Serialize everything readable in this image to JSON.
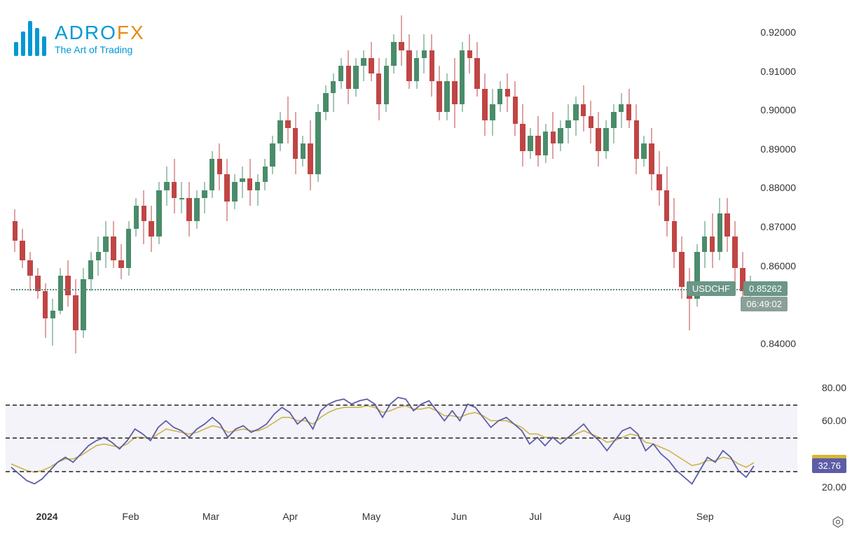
{
  "logo": {
    "title_a": "ADRO",
    "title_b": "FX",
    "subtitle": "The Art of Trading"
  },
  "main_chart": {
    "type": "candlestick",
    "symbol": "USDCHF",
    "current_price": "0.85262",
    "countdown": "06:49:02",
    "price_line_y": 0.85262,
    "y_axis": {
      "min": 0.834,
      "max": 0.924,
      "ticks": [
        0.84,
        0.86,
        0.87,
        0.88,
        0.89,
        0.9,
        0.91,
        0.92
      ],
      "tick_labels": [
        "0.84000",
        "0.86000",
        "0.87000",
        "0.88000",
        "0.89000",
        "0.90000",
        "0.91000",
        "0.92000"
      ]
    },
    "candles": [
      {
        "o": 0.87,
        "h": 0.873,
        "l": 0.862,
        "c": 0.865,
        "g": false
      },
      {
        "o": 0.865,
        "h": 0.868,
        "l": 0.858,
        "c": 0.86,
        "g": false
      },
      {
        "o": 0.86,
        "h": 0.862,
        "l": 0.852,
        "c": 0.856,
        "g": false
      },
      {
        "o": 0.856,
        "h": 0.858,
        "l": 0.85,
        "c": 0.852,
        "g": false
      },
      {
        "o": 0.852,
        "h": 0.854,
        "l": 0.84,
        "c": 0.845,
        "g": false
      },
      {
        "o": 0.845,
        "h": 0.85,
        "l": 0.838,
        "c": 0.847,
        "g": true
      },
      {
        "o": 0.847,
        "h": 0.858,
        "l": 0.846,
        "c": 0.856,
        "g": true
      },
      {
        "o": 0.856,
        "h": 0.86,
        "l": 0.848,
        "c": 0.851,
        "g": false
      },
      {
        "o": 0.851,
        "h": 0.855,
        "l": 0.836,
        "c": 0.842,
        "g": false
      },
      {
        "o": 0.842,
        "h": 0.858,
        "l": 0.84,
        "c": 0.855,
        "g": true
      },
      {
        "o": 0.855,
        "h": 0.862,
        "l": 0.852,
        "c": 0.86,
        "g": true
      },
      {
        "o": 0.86,
        "h": 0.866,
        "l": 0.856,
        "c": 0.862,
        "g": true
      },
      {
        "o": 0.862,
        "h": 0.87,
        "l": 0.858,
        "c": 0.866,
        "g": true
      },
      {
        "o": 0.866,
        "h": 0.87,
        "l": 0.858,
        "c": 0.86,
        "g": false
      },
      {
        "o": 0.86,
        "h": 0.864,
        "l": 0.855,
        "c": 0.858,
        "g": false
      },
      {
        "o": 0.858,
        "h": 0.87,
        "l": 0.856,
        "c": 0.868,
        "g": true
      },
      {
        "o": 0.868,
        "h": 0.876,
        "l": 0.866,
        "c": 0.874,
        "g": true
      },
      {
        "o": 0.874,
        "h": 0.878,
        "l": 0.864,
        "c": 0.87,
        "g": false
      },
      {
        "o": 0.87,
        "h": 0.874,
        "l": 0.862,
        "c": 0.866,
        "g": false
      },
      {
        "o": 0.866,
        "h": 0.88,
        "l": 0.864,
        "c": 0.878,
        "g": true
      },
      {
        "o": 0.878,
        "h": 0.884,
        "l": 0.874,
        "c": 0.88,
        "g": true
      },
      {
        "o": 0.88,
        "h": 0.886,
        "l": 0.872,
        "c": 0.876,
        "g": false
      },
      {
        "o": 0.876,
        "h": 0.88,
        "l": 0.872,
        "c": 0.876,
        "g": true
      },
      {
        "o": 0.876,
        "h": 0.88,
        "l": 0.866,
        "c": 0.87,
        "g": false
      },
      {
        "o": 0.87,
        "h": 0.878,
        "l": 0.868,
        "c": 0.876,
        "g": true
      },
      {
        "o": 0.876,
        "h": 0.88,
        "l": 0.872,
        "c": 0.878,
        "g": true
      },
      {
        "o": 0.878,
        "h": 0.888,
        "l": 0.876,
        "c": 0.886,
        "g": true
      },
      {
        "o": 0.886,
        "h": 0.89,
        "l": 0.878,
        "c": 0.882,
        "g": false
      },
      {
        "o": 0.882,
        "h": 0.886,
        "l": 0.87,
        "c": 0.875,
        "g": false
      },
      {
        "o": 0.875,
        "h": 0.882,
        "l": 0.873,
        "c": 0.88,
        "g": true
      },
      {
        "o": 0.88,
        "h": 0.884,
        "l": 0.876,
        "c": 0.881,
        "g": true
      },
      {
        "o": 0.881,
        "h": 0.886,
        "l": 0.874,
        "c": 0.878,
        "g": false
      },
      {
        "o": 0.878,
        "h": 0.882,
        "l": 0.874,
        "c": 0.88,
        "g": true
      },
      {
        "o": 0.88,
        "h": 0.886,
        "l": 0.878,
        "c": 0.884,
        "g": true
      },
      {
        "o": 0.884,
        "h": 0.892,
        "l": 0.882,
        "c": 0.89,
        "g": true
      },
      {
        "o": 0.89,
        "h": 0.898,
        "l": 0.888,
        "c": 0.896,
        "g": true
      },
      {
        "o": 0.896,
        "h": 0.902,
        "l": 0.89,
        "c": 0.894,
        "g": false
      },
      {
        "o": 0.894,
        "h": 0.898,
        "l": 0.882,
        "c": 0.886,
        "g": false
      },
      {
        "o": 0.886,
        "h": 0.892,
        "l": 0.884,
        "c": 0.89,
        "g": true
      },
      {
        "o": 0.89,
        "h": 0.896,
        "l": 0.878,
        "c": 0.882,
        "g": false
      },
      {
        "o": 0.882,
        "h": 0.9,
        "l": 0.88,
        "c": 0.898,
        "g": true
      },
      {
        "o": 0.898,
        "h": 0.905,
        "l": 0.896,
        "c": 0.903,
        "g": true
      },
      {
        "o": 0.903,
        "h": 0.908,
        "l": 0.898,
        "c": 0.906,
        "g": true
      },
      {
        "o": 0.906,
        "h": 0.912,
        "l": 0.904,
        "c": 0.91,
        "g": true
      },
      {
        "o": 0.91,
        "h": 0.914,
        "l": 0.9,
        "c": 0.904,
        "g": false
      },
      {
        "o": 0.904,
        "h": 0.912,
        "l": 0.902,
        "c": 0.91,
        "g": true
      },
      {
        "o": 0.91,
        "h": 0.914,
        "l": 0.906,
        "c": 0.912,
        "g": true
      },
      {
        "o": 0.912,
        "h": 0.916,
        "l": 0.906,
        "c": 0.908,
        "g": false
      },
      {
        "o": 0.908,
        "h": 0.912,
        "l": 0.896,
        "c": 0.9,
        "g": false
      },
      {
        "o": 0.9,
        "h": 0.912,
        "l": 0.898,
        "c": 0.91,
        "g": true
      },
      {
        "o": 0.91,
        "h": 0.918,
        "l": 0.908,
        "c": 0.916,
        "g": true
      },
      {
        "o": 0.916,
        "h": 0.923,
        "l": 0.91,
        "c": 0.914,
        "g": false
      },
      {
        "o": 0.914,
        "h": 0.918,
        "l": 0.904,
        "c": 0.906,
        "g": false
      },
      {
        "o": 0.906,
        "h": 0.914,
        "l": 0.904,
        "c": 0.912,
        "g": true
      },
      {
        "o": 0.912,
        "h": 0.918,
        "l": 0.908,
        "c": 0.914,
        "g": true
      },
      {
        "o": 0.914,
        "h": 0.918,
        "l": 0.902,
        "c": 0.906,
        "g": false
      },
      {
        "o": 0.906,
        "h": 0.91,
        "l": 0.896,
        "c": 0.898,
        "g": false
      },
      {
        "o": 0.898,
        "h": 0.908,
        "l": 0.896,
        "c": 0.906,
        "g": true
      },
      {
        "o": 0.906,
        "h": 0.912,
        "l": 0.894,
        "c": 0.9,
        "g": false
      },
      {
        "o": 0.9,
        "h": 0.916,
        "l": 0.898,
        "c": 0.914,
        "g": true
      },
      {
        "o": 0.914,
        "h": 0.918,
        "l": 0.908,
        "c": 0.912,
        "g": false
      },
      {
        "o": 0.912,
        "h": 0.916,
        "l": 0.902,
        "c": 0.904,
        "g": false
      },
      {
        "o": 0.904,
        "h": 0.908,
        "l": 0.892,
        "c": 0.896,
        "g": false
      },
      {
        "o": 0.896,
        "h": 0.904,
        "l": 0.892,
        "c": 0.9,
        "g": true
      },
      {
        "o": 0.9,
        "h": 0.906,
        "l": 0.898,
        "c": 0.904,
        "g": true
      },
      {
        "o": 0.904,
        "h": 0.908,
        "l": 0.898,
        "c": 0.902,
        "g": false
      },
      {
        "o": 0.902,
        "h": 0.906,
        "l": 0.892,
        "c": 0.895,
        "g": false
      },
      {
        "o": 0.895,
        "h": 0.9,
        "l": 0.884,
        "c": 0.888,
        "g": false
      },
      {
        "o": 0.888,
        "h": 0.894,
        "l": 0.886,
        "c": 0.892,
        "g": true
      },
      {
        "o": 0.892,
        "h": 0.897,
        "l": 0.884,
        "c": 0.887,
        "g": false
      },
      {
        "o": 0.887,
        "h": 0.895,
        "l": 0.885,
        "c": 0.893,
        "g": true
      },
      {
        "o": 0.893,
        "h": 0.898,
        "l": 0.886,
        "c": 0.89,
        "g": false
      },
      {
        "o": 0.89,
        "h": 0.896,
        "l": 0.888,
        "c": 0.894,
        "g": true
      },
      {
        "o": 0.894,
        "h": 0.9,
        "l": 0.89,
        "c": 0.896,
        "g": true
      },
      {
        "o": 0.896,
        "h": 0.902,
        "l": 0.892,
        "c": 0.9,
        "g": true
      },
      {
        "o": 0.9,
        "h": 0.905,
        "l": 0.893,
        "c": 0.897,
        "g": false
      },
      {
        "o": 0.897,
        "h": 0.901,
        "l": 0.89,
        "c": 0.894,
        "g": false
      },
      {
        "o": 0.894,
        "h": 0.898,
        "l": 0.884,
        "c": 0.888,
        "g": false
      },
      {
        "o": 0.888,
        "h": 0.896,
        "l": 0.886,
        "c": 0.894,
        "g": true
      },
      {
        "o": 0.894,
        "h": 0.9,
        "l": 0.89,
        "c": 0.898,
        "g": true
      },
      {
        "o": 0.898,
        "h": 0.903,
        "l": 0.894,
        "c": 0.9,
        "g": true
      },
      {
        "o": 0.9,
        "h": 0.904,
        "l": 0.894,
        "c": 0.896,
        "g": false
      },
      {
        "o": 0.896,
        "h": 0.9,
        "l": 0.882,
        "c": 0.886,
        "g": false
      },
      {
        "o": 0.886,
        "h": 0.892,
        "l": 0.884,
        "c": 0.89,
        "g": true
      },
      {
        "o": 0.89,
        "h": 0.894,
        "l": 0.878,
        "c": 0.882,
        "g": false
      },
      {
        "o": 0.882,
        "h": 0.888,
        "l": 0.874,
        "c": 0.878,
        "g": false
      },
      {
        "o": 0.878,
        "h": 0.884,
        "l": 0.866,
        "c": 0.87,
        "g": false
      },
      {
        "o": 0.87,
        "h": 0.876,
        "l": 0.858,
        "c": 0.862,
        "g": false
      },
      {
        "o": 0.862,
        "h": 0.866,
        "l": 0.85,
        "c": 0.853,
        "g": false
      },
      {
        "o": 0.853,
        "h": 0.858,
        "l": 0.842,
        "c": 0.85,
        "g": false
      },
      {
        "o": 0.85,
        "h": 0.864,
        "l": 0.848,
        "c": 0.862,
        "g": true
      },
      {
        "o": 0.862,
        "h": 0.87,
        "l": 0.858,
        "c": 0.866,
        "g": true
      },
      {
        "o": 0.866,
        "h": 0.872,
        "l": 0.858,
        "c": 0.862,
        "g": false
      },
      {
        "o": 0.862,
        "h": 0.876,
        "l": 0.86,
        "c": 0.872,
        "g": true
      },
      {
        "o": 0.872,
        "h": 0.876,
        "l": 0.862,
        "c": 0.866,
        "g": false
      },
      {
        "o": 0.866,
        "h": 0.87,
        "l": 0.854,
        "c": 0.858,
        "g": false
      },
      {
        "o": 0.858,
        "h": 0.862,
        "l": 0.848,
        "c": 0.852,
        "g": false
      },
      {
        "o": 0.852,
        "h": 0.856,
        "l": 0.848,
        "c": 0.852,
        "g": true
      }
    ],
    "candle_green": "#4a8c6a",
    "candle_red": "#c04545",
    "background": "#ffffff"
  },
  "rsi": {
    "type": "line",
    "y_axis": {
      "min": 10,
      "max": 90,
      "ticks": [
        20,
        60,
        80
      ],
      "tick_labels": [
        "20.00",
        "60.00",
        "80.00"
      ]
    },
    "bands": {
      "upper": 70,
      "lower": 30,
      "mid": 50
    },
    "value_purple": "32.76",
    "value_yellow": "34.76",
    "purple_color": "#5d5ca8",
    "yellow_color": "#d4b838",
    "band_fill": "rgba(100,100,180,0.08)",
    "dash_color": "#555555",
    "purple_series": [
      32,
      28,
      24,
      22,
      25,
      30,
      35,
      38,
      35,
      40,
      45,
      48,
      50,
      47,
      43,
      48,
      55,
      52,
      48,
      56,
      60,
      56,
      54,
      50,
      55,
      58,
      62,
      58,
      50,
      55,
      57,
      53,
      55,
      58,
      64,
      68,
      65,
      58,
      62,
      55,
      66,
      70,
      72,
      73,
      70,
      72,
      73,
      70,
      62,
      70,
      74,
      73,
      66,
      70,
      72,
      66,
      60,
      66,
      60,
      70,
      68,
      62,
      56,
      60,
      62,
      58,
      54,
      46,
      50,
      45,
      50,
      46,
      50,
      54,
      58,
      52,
      48,
      42,
      48,
      54,
      56,
      52,
      42,
      46,
      40,
      36,
      30,
      26,
      22,
      30,
      38,
      35,
      42,
      38,
      30,
      26,
      32.76
    ],
    "yellow_series": [
      34,
      32,
      30,
      29,
      30,
      32,
      35,
      37,
      37,
      39,
      42,
      45,
      46,
      45,
      44,
      46,
      50,
      50,
      49,
      52,
      55,
      54,
      53,
      52,
      53,
      55,
      57,
      56,
      53,
      54,
      55,
      54,
      54,
      56,
      59,
      62,
      62,
      60,
      60,
      58,
      62,
      65,
      67,
      68,
      68,
      68,
      69,
      68,
      65,
      66,
      68,
      69,
      67,
      67,
      68,
      66,
      63,
      63,
      62,
      64,
      65,
      63,
      60,
      60,
      60,
      58,
      56,
      52,
      52,
      50,
      50,
      49,
      50,
      52,
      54,
      52,
      50,
      47,
      48,
      50,
      52,
      51,
      47,
      46,
      44,
      42,
      39,
      36,
      33,
      34,
      36,
      36,
      38,
      37,
      34,
      32,
      34.76
    ]
  },
  "x_axis": {
    "labels": [
      "2024",
      "Feb",
      "Mar",
      "Apr",
      "May",
      "Jun",
      "Jul",
      "Aug",
      "Sep"
    ],
    "positions": [
      0.041,
      0.157,
      0.265,
      0.373,
      0.48,
      0.6,
      0.705,
      0.818,
      0.93
    ]
  }
}
